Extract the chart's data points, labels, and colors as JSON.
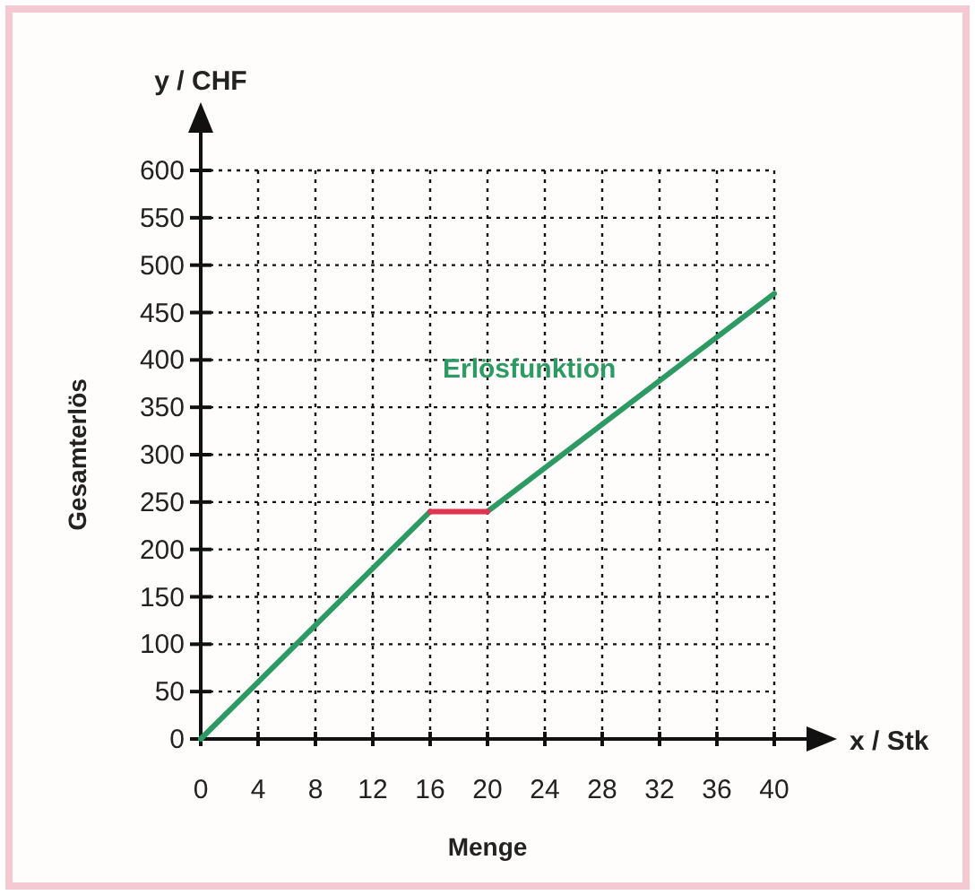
{
  "chart_data": {
    "type": "line",
    "xlabel": "x / Stk",
    "ylabel": "y / CHF",
    "annotations": [
      "Gesamterlös",
      "Menge"
    ],
    "xlim": [
      0,
      40
    ],
    "xticks": [
      0,
      4,
      8,
      12,
      16,
      20,
      24,
      28,
      32,
      36,
      40
    ],
    "ylim": [
      0,
      600
    ],
    "yticks": [
      0,
      50,
      100,
      150,
      200,
      250,
      300,
      350,
      400,
      450,
      500,
      550,
      600
    ],
    "grid": true,
    "line_style": "solid",
    "marker": "none",
    "series": [
      {
        "name": "Erlösfunktion",
        "color": "#2e9a63",
        "x": [
          0,
          16,
          18,
          20,
          40
        ],
        "values": [
          0,
          240,
          null,
          240,
          470
        ]
      },
      {
        "color": "#e0344f",
        "x": [
          16,
          20
        ],
        "values": [
          240,
          240
        ]
      }
    ]
  }
}
